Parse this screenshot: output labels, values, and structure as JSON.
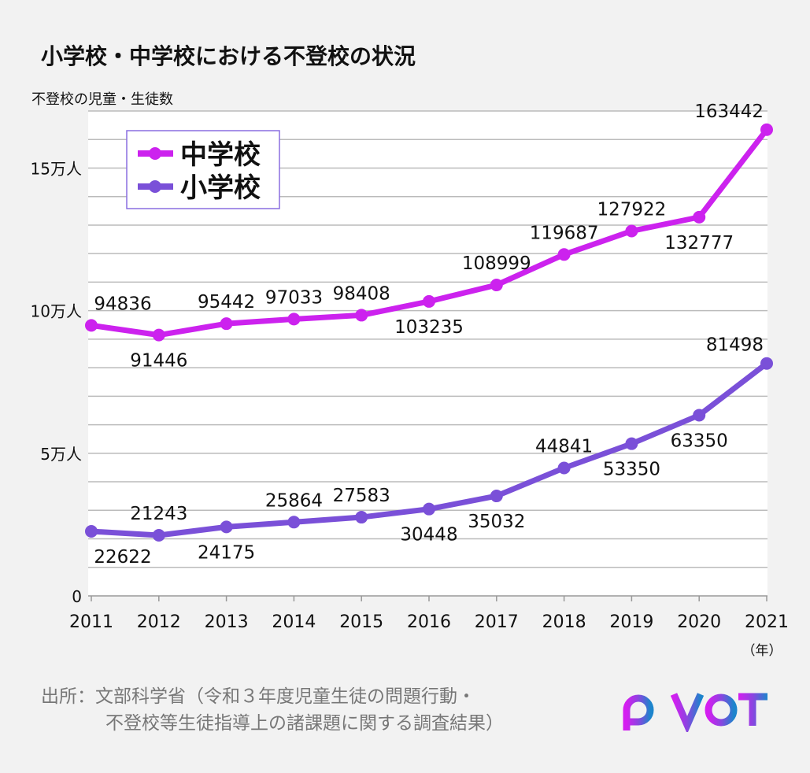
{
  "title": "小学校・中学校における不登校の状況",
  "y_axis_title": "不登校の児童・生徒数",
  "x_unit": "（年）",
  "source_lines": [
    "出所：文部科学省（令和３年度児童生徒の問題行動・",
    "不登校等生徒指導上の諸課題に関する調査結果）"
  ],
  "logo_text": "PIVOT",
  "chart_data": {
    "type": "line",
    "title": "小学校・中学校における不登校の状況",
    "ylabel": "不登校の児童・生徒数",
    "xlabel": "（年）",
    "x": [
      "2011",
      "2012",
      "2013",
      "2014",
      "2015",
      "2016",
      "2017",
      "2018",
      "2019",
      "2020",
      "2021"
    ],
    "ylim": [
      0,
      170000
    ],
    "yticks": [
      {
        "value": 0,
        "label": "0"
      },
      {
        "value": 50000,
        "label": "5万人"
      },
      {
        "value": 100000,
        "label": "10万人"
      },
      {
        "value": 150000,
        "label": "15万人"
      }
    ],
    "grid": true,
    "legend": "top-left",
    "series": [
      {
        "name": "中学校",
        "color": "#cc22ee",
        "values": [
          94836,
          91446,
          95442,
          97033,
          98408,
          103235,
          108999,
          119687,
          127922,
          132777,
          163442
        ]
      },
      {
        "name": "小学校",
        "color": "#7a50d8",
        "values": [
          22622,
          21243,
          24175,
          25864,
          27583,
          30448,
          35032,
          44841,
          53350,
          63350,
          81498
        ]
      }
    ]
  }
}
